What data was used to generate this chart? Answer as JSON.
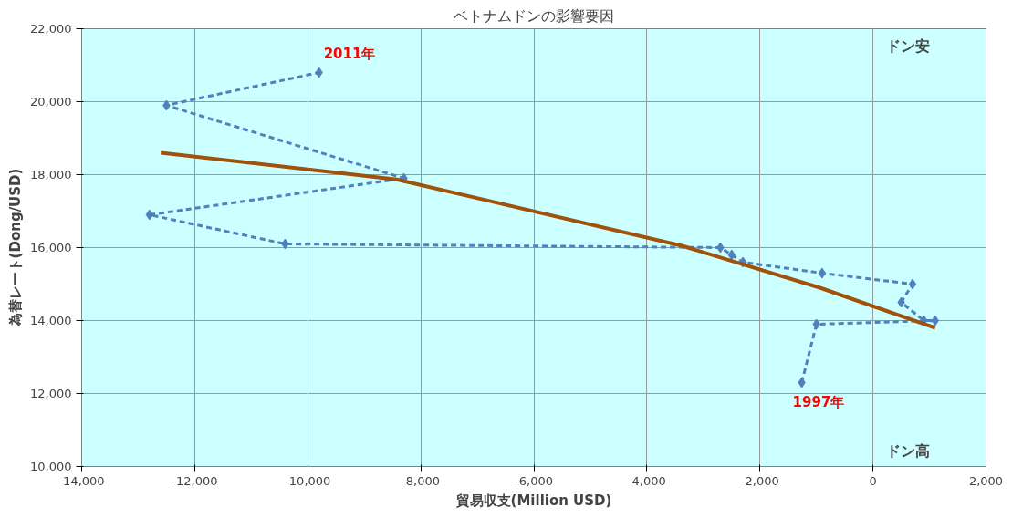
{
  "chart_data": {
    "type": "line",
    "title": "ベトナムドンの影響要因",
    "xlabel": "貿易収支(Million USD)",
    "ylabel": "為替レート(Dong/USD)",
    "xlim": [
      -14000,
      2000
    ],
    "ylim": [
      10000,
      22000
    ],
    "xticks": [
      {
        "value": -14000,
        "label": "-14,000"
      },
      {
        "value": -12000,
        "label": "-12,000"
      },
      {
        "value": -10000,
        "label": "-10,000"
      },
      {
        "value": -8000,
        "label": "-8,000"
      },
      {
        "value": -6000,
        "label": "-6,000"
      },
      {
        "value": -4000,
        "label": "-4,000"
      },
      {
        "value": -2000,
        "label": "-2,000"
      },
      0,
      {
        "value": 2000,
        "label": "2,000"
      }
    ],
    "yticks": [
      {
        "value": 10000,
        "label": "10,000"
      },
      {
        "value": 12000,
        "label": "12,000"
      },
      {
        "value": 14000,
        "label": "14,000"
      },
      {
        "value": 16000,
        "label": "16,000"
      },
      {
        "value": 18000,
        "label": "18,000"
      },
      {
        "value": 20000,
        "label": "20,000"
      },
      {
        "value": 22000,
        "label": "22,000"
      }
    ],
    "grid": true,
    "series": [
      {
        "color": "#4f81bd",
        "marker": "diamond",
        "line_style": "dashed",
        "x": [
          -1260,
          -1000,
          1100,
          900,
          500,
          700,
          -900,
          -2300,
          -2500,
          -2700,
          -10400,
          -12800,
          -8300,
          -12500,
          -9800
        ],
        "values": [
          12300,
          13900,
          14000,
          14000,
          14500,
          15000,
          15300,
          15600,
          15800,
          16000,
          16100,
          16900,
          17900,
          19900,
          20800
        ]
      },
      {
        "color": "#a0520a",
        "marker": "none",
        "line_style": "solid",
        "x": [
          1100,
          -940,
          -3380,
          -8430,
          -12600
        ],
        "values": [
          13800,
          14900,
          16050,
          17870,
          18600
        ]
      }
    ],
    "annotations": [
      {
        "text": "2011年",
        "x": -9800,
        "y": 20800
      },
      {
        "text": "1997年",
        "x": -1260,
        "y": 12300
      },
      "ドン安",
      "ドン高"
    ]
  }
}
